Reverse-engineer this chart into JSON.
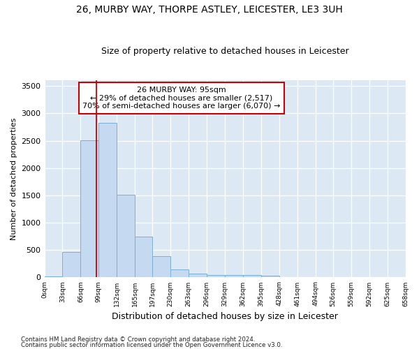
{
  "title1": "26, MURBY WAY, THORPE ASTLEY, LEICESTER, LE3 3UH",
  "title2": "Size of property relative to detached houses in Leicester",
  "xlabel": "Distribution of detached houses by size in Leicester",
  "ylabel": "Number of detached properties",
  "property_size": 95,
  "annotation_line1": "26 MURBY WAY: 95sqm",
  "annotation_line2": "← 29% of detached houses are smaller (2,517)",
  "annotation_line3": "70% of semi-detached houses are larger (6,070) →",
  "bar_color": "#c5d9f0",
  "bar_edge_color": "#7bafd4",
  "vline_color": "#cc0000",
  "plot_bg_color": "#dce9f5",
  "fig_bg_color": "#ffffff",
  "footer1": "Contains HM Land Registry data © Crown copyright and database right 2024.",
  "footer2": "Contains public sector information licensed under the Open Government Licence v3.0.",
  "bin_edges": [
    0,
    33,
    66,
    99,
    132,
    165,
    197,
    230,
    263,
    296,
    329,
    362,
    395,
    428,
    461,
    494,
    526,
    559,
    592,
    625,
    658
  ],
  "bin_counts": [
    20,
    470,
    2510,
    2820,
    1510,
    745,
    390,
    140,
    75,
    50,
    50,
    50,
    30,
    10,
    0,
    0,
    0,
    0,
    0,
    0
  ],
  "ylim": [
    0,
    3600
  ],
  "yticks": [
    0,
    500,
    1000,
    1500,
    2000,
    2500,
    3000,
    3500
  ]
}
